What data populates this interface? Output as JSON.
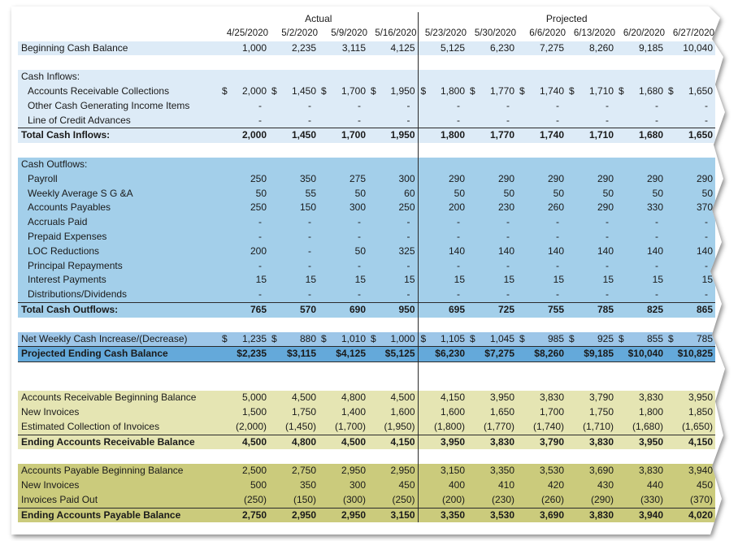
{
  "header": {
    "groups": [
      "Actual",
      "Projected"
    ],
    "dates": [
      "4/25/2020",
      "5/2/2020",
      "5/9/2020",
      "5/16/2020",
      "5/23/2020",
      "5/30/2020",
      "6/6/2020",
      "6/13/2020",
      "6/20/2020",
      "6/27/2020"
    ]
  },
  "sections": [
    {
      "rows": [
        {
          "label": "Beginning Cash Balance",
          "cells": [
            "1,000",
            "2,235",
            "3,115",
            "4,125",
            "5,125",
            "6,230",
            "7,275",
            "8,260",
            "9,185",
            "10,040"
          ]
        }
      ]
    },
    {
      "rows": [
        {
          "label": "Cash Inflows:"
        },
        {
          "label": "Accounts Receivable Collections",
          "cells": [
            "$ 2,000",
            "$ 1,450",
            "$ 1,700",
            "$ 1,950",
            "$ 1,800",
            "$ 1,770",
            "$ 1,740",
            "$ 1,710",
            "$ 1,680",
            "$ 1,650"
          ]
        },
        {
          "label": "Other Cash Generating Income Items",
          "cells": [
            "-",
            "-",
            "-",
            "-",
            "-",
            "-",
            "-",
            "-",
            "-",
            "-"
          ]
        },
        {
          "label": "Line of Credit Advances",
          "cells": [
            "-",
            "-",
            "-",
            "-",
            "-",
            "-",
            "-",
            "-",
            "-",
            "-"
          ]
        },
        {
          "label": "Total Cash Inflows:",
          "cells": [
            "2,000",
            "1,450",
            "1,700",
            "1,950",
            "1,800",
            "1,770",
            "1,740",
            "1,710",
            "1,680",
            "1,650"
          ]
        }
      ]
    },
    {
      "rows": [
        {
          "label": "Cash Outflows:"
        },
        {
          "label": "Payroll",
          "cells": [
            "250",
            "350",
            "275",
            "300",
            "290",
            "290",
            "290",
            "290",
            "290",
            "290"
          ]
        },
        {
          "label": "Weekly Average S G &A",
          "cells": [
            "50",
            "55",
            "50",
            "60",
            "50",
            "50",
            "50",
            "50",
            "50",
            "50"
          ]
        },
        {
          "label": "Accounts Payables",
          "cells": [
            "250",
            "150",
            "300",
            "250",
            "200",
            "230",
            "260",
            "290",
            "330",
            "370"
          ]
        },
        {
          "label": "Accruals Paid",
          "cells": [
            "-",
            "-",
            "-",
            "-",
            "-",
            "-",
            "-",
            "-",
            "-",
            "-"
          ]
        },
        {
          "label": "Prepaid Expenses",
          "cells": [
            "-",
            "-",
            "-",
            "-",
            "-",
            "-",
            "-",
            "-",
            "-",
            "-"
          ]
        },
        {
          "label": "LOC Reductions",
          "cells": [
            "200",
            "-",
            "50",
            "325",
            "140",
            "140",
            "140",
            "140",
            "140",
            "140"
          ]
        },
        {
          "label": "Principal Repayments",
          "cells": [
            "-",
            "-",
            "-",
            "-",
            "-",
            "-",
            "-",
            "-",
            "-",
            "-"
          ]
        },
        {
          "label": "Interest Payments",
          "cells": [
            "15",
            "15",
            "15",
            "15",
            "15",
            "15",
            "15",
            "15",
            "15",
            "15"
          ]
        },
        {
          "label": "Distributions/Dividends",
          "cells": [
            "-",
            "-",
            "-",
            "-",
            "-",
            "-",
            "-",
            "-",
            "-",
            "-"
          ]
        },
        {
          "label": "Total Cash Outflows:",
          "cells": [
            "765",
            "570",
            "690",
            "950",
            "695",
            "725",
            "755",
            "785",
            "825",
            "865"
          ]
        }
      ]
    },
    {
      "rows": [
        {
          "label": "Net Weekly Cash Increase/(Decrease)",
          "cells": [
            "$ 1,235",
            "$ 880",
            "$ 1,010",
            "$ 1,000",
            "$ 1,105",
            "$ 1,045",
            "$ 985",
            "$ 925",
            "$ 855",
            "$ 785"
          ]
        },
        {
          "label": "Projected Ending Cash Balance",
          "cells": [
            "$2,235",
            "$3,115",
            "$4,125",
            "$5,125",
            "$6,230",
            "$7,275",
            "$8,260",
            "$9,185",
            "$10,040",
            "$10,825"
          ]
        }
      ]
    },
    {
      "rows": [
        {
          "label": "Accounts Receivable Beginning Balance",
          "cells": [
            "5,000",
            "4,500",
            "4,800",
            "4,500",
            "4,150",
            "3,950",
            "3,830",
            "3,790",
            "3,830",
            "3,950"
          ]
        },
        {
          "label": "New Invoices",
          "cells": [
            "1,500",
            "1,750",
            "1,400",
            "1,600",
            "1,600",
            "1,650",
            "1,700",
            "1,750",
            "1,800",
            "1,850"
          ]
        },
        {
          "label": "Estimated Collection of Invoices",
          "cells": [
            "(2,000)",
            "(1,450)",
            "(1,700)",
            "(1,950)",
            "(1,800)",
            "(1,770)",
            "(1,740)",
            "(1,710)",
            "(1,680)",
            "(1,650)"
          ]
        },
        {
          "label": "Ending Accounts Receivable Balance",
          "cells": [
            "4,500",
            "4,800",
            "4,500",
            "4,150",
            "3,950",
            "3,830",
            "3,790",
            "3,830",
            "3,950",
            "4,150"
          ]
        }
      ]
    },
    {
      "rows": [
        {
          "label": "Accounts Payable Beginning Balance",
          "cells": [
            "2,500",
            "2,750",
            "2,950",
            "2,950",
            "3,150",
            "3,350",
            "3,530",
            "3,690",
            "3,830",
            "3,940"
          ]
        },
        {
          "label": "New Invoices",
          "cells": [
            "500",
            "350",
            "300",
            "450",
            "400",
            "410",
            "420",
            "430",
            "440",
            "450"
          ]
        },
        {
          "label": "Invoices Paid Out",
          "cells": [
            "(250)",
            "(150)",
            "(300)",
            "(250)",
            "(200)",
            "(230)",
            "(260)",
            "(290)",
            "(330)",
            "(370)"
          ]
        },
        {
          "label": "Ending Accounts Payable Balance",
          "cells": [
            "2,750",
            "2,950",
            "2,950",
            "3,150",
            "3,350",
            "3,530",
            "3,690",
            "3,830",
            "3,940",
            "4,020"
          ]
        }
      ]
    }
  ]
}
